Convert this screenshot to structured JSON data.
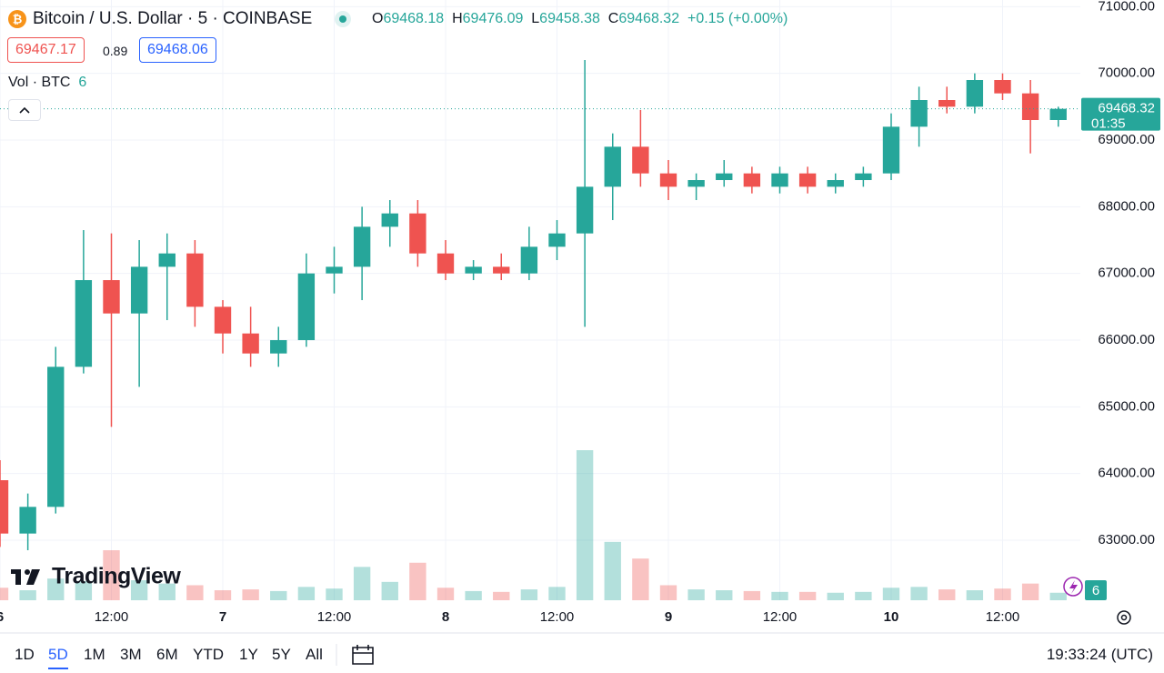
{
  "chart_data": {
    "type": "candlestick",
    "title": "Bitcoin / U.S. Dollar · 5 · COINBASE",
    "legend": {
      "o": "O",
      "open": 69468.18,
      "h": "H",
      "high": 69476.09,
      "l": "L",
      "low": 69458.38,
      "c": "C",
      "close": 69468.32,
      "change": "+0.15 (+0.00%)"
    },
    "bid": "69467.17",
    "spread": "0.89",
    "ask": "69468.06",
    "up_color": "#26a69a",
    "down_color": "#ef5350",
    "categories": [
      "6",
      null,
      null,
      null,
      "12:00",
      null,
      null,
      null,
      "7",
      null,
      null,
      null,
      "12:00",
      null,
      null,
      null,
      "8",
      null,
      null,
      null,
      "12:00",
      null,
      null,
      null,
      "9",
      null,
      null,
      null,
      "12:00",
      null,
      null,
      null,
      "10",
      null,
      null,
      null,
      "12:00",
      null,
      null
    ],
    "open": [
      63900,
      63100,
      63500,
      65600,
      66900,
      66400,
      67100,
      67300,
      66500,
      66100,
      65800,
      66000,
      67000,
      67100,
      67700,
      67900,
      67300,
      67000,
      67100,
      67000,
      67400,
      67600,
      68300,
      68900,
      68500,
      68300,
      68400,
      68500,
      68300,
      68500,
      68300,
      68400,
      68500,
      69200,
      69600,
      69500,
      69900,
      69700,
      69300
    ],
    "high": [
      64200,
      63700,
      65900,
      67650,
      67600,
      67500,
      67600,
      67500,
      66600,
      66500,
      66200,
      67300,
      67400,
      68000,
      68100,
      68100,
      67500,
      67200,
      67300,
      67700,
      67800,
      70200,
      69100,
      69450,
      68700,
      68500,
      68700,
      68600,
      68600,
      68600,
      68500,
      68600,
      69400,
      69800,
      69800,
      70000,
      70000,
      69900,
      69500
    ],
    "low": [
      62900,
      62850,
      63400,
      65500,
      64700,
      65300,
      66300,
      66200,
      65800,
      65600,
      65600,
      65900,
      66700,
      66600,
      67400,
      67100,
      66900,
      66900,
      66900,
      66900,
      67200,
      66200,
      67800,
      68300,
      68100,
      68100,
      68300,
      68200,
      68200,
      68200,
      68200,
      68300,
      68400,
      68900,
      69400,
      69400,
      69600,
      68800,
      69200
    ],
    "close": [
      63100,
      63500,
      65600,
      66900,
      66400,
      67100,
      67300,
      66500,
      66100,
      65800,
      66000,
      67000,
      67100,
      67700,
      67900,
      67300,
      67000,
      67100,
      67000,
      67400,
      67600,
      68300,
      68900,
      68500,
      68300,
      68400,
      68500,
      68300,
      68500,
      68300,
      68400,
      68500,
      69200,
      69600,
      69500,
      69900,
      69700,
      69300,
      69468.32
    ],
    "volume": {
      "name": "Vol · BTC",
      "last": 6,
      "values": [
        150,
        120,
        260,
        230,
        600,
        240,
        200,
        180,
        120,
        130,
        110,
        160,
        140,
        400,
        220,
        450,
        150,
        110,
        100,
        130,
        160,
        1800,
        700,
        500,
        180,
        130,
        120,
        110,
        100,
        100,
        90,
        100,
        150,
        160,
        130,
        120,
        140,
        200,
        90
      ]
    },
    "ylim": [
      62100,
      71100
    ],
    "yticks": [
      {
        "value": 63000,
        "label": "63000.00"
      },
      {
        "value": 64000,
        "label": "64000.00"
      },
      {
        "value": 65000,
        "label": "65000.00"
      },
      {
        "value": 66000,
        "label": "66000.00"
      },
      {
        "value": 67000,
        "label": "67000.00"
      },
      {
        "value": 68000,
        "label": "68000.00"
      },
      {
        "value": 69000,
        "label": "69000.00"
      },
      {
        "value": 70000,
        "label": "70000.00"
      },
      {
        "value": 71000,
        "label": "71000.00"
      }
    ],
    "last_price": 69468.32,
    "countdown": "01:35",
    "grid": true
  },
  "branding": "TradingView",
  "toolbar": {
    "ranges": [
      "1D",
      "5D",
      "1M",
      "3M",
      "6M",
      "YTD",
      "1Y",
      "5Y",
      "All"
    ],
    "active": 1,
    "clock": "19:33:24 (UTC)"
  }
}
